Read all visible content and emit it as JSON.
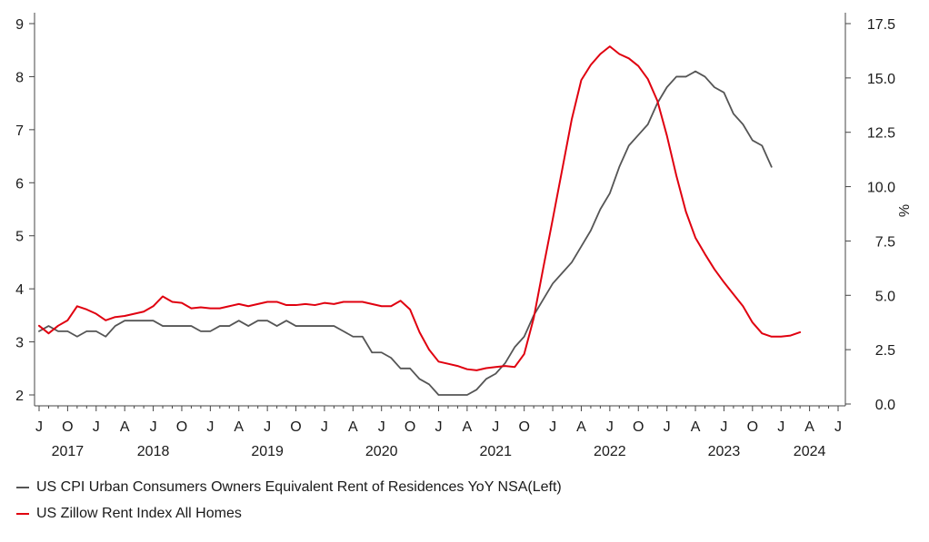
{
  "chart_data": {
    "type": "line",
    "title": "",
    "left_axis": {
      "ticks": [
        2,
        3,
        4,
        5,
        6,
        7,
        8,
        9
      ],
      "min": 1.8,
      "max": 9.2
    },
    "right_axis": {
      "label": "%",
      "ticks": [
        "0.0",
        "2.5",
        "5.0",
        "7.5",
        "10.0",
        "12.5",
        "15.0",
        "17.5"
      ],
      "min": 0.0,
      "max": 17.5
    },
    "x_axis": {
      "start": "2017-07",
      "end": "2024-07",
      "month_ticks": [
        "J",
        "O",
        "J",
        "A",
        "J",
        "O",
        "J",
        "A",
        "J",
        "O",
        "J",
        "A",
        "J",
        "O",
        "J",
        "A",
        "J",
        "O",
        "J",
        "A",
        "J",
        "O",
        "J",
        "A",
        "J",
        "O",
        "J",
        "A",
        "J"
      ],
      "year_labels": [
        {
          "label": "2017",
          "month": "2017-10"
        },
        {
          "label": "2018",
          "month": "2018-07"
        },
        {
          "label": "2019",
          "month": "2019-07"
        },
        {
          "label": "2020",
          "month": "2020-07"
        },
        {
          "label": "2021",
          "month": "2021-07"
        },
        {
          "label": "2022",
          "month": "2022-07"
        },
        {
          "label": "2023",
          "month": "2023-07"
        },
        {
          "label": "2024",
          "month": "2024-04"
        }
      ]
    },
    "grid": false,
    "series": [
      {
        "name": "US CPI Urban Consumers Owners Equivalent Rent of Residences YoY NSA(Left)",
        "axis": "left",
        "color": "#555555",
        "start": "2017-07",
        "values": [
          3.2,
          3.3,
          3.2,
          3.2,
          3.1,
          3.2,
          3.2,
          3.1,
          3.3,
          3.4,
          3.4,
          3.4,
          3.4,
          3.3,
          3.3,
          3.3,
          3.3,
          3.2,
          3.2,
          3.3,
          3.3,
          3.4,
          3.3,
          3.4,
          3.4,
          3.3,
          3.4,
          3.3,
          3.3,
          3.3,
          3.3,
          3.3,
          3.2,
          3.1,
          3.1,
          2.8,
          2.8,
          2.7,
          2.5,
          2.5,
          2.3,
          2.2,
          2.0,
          2.0,
          2.0,
          2.0,
          2.1,
          2.3,
          2.4,
          2.6,
          2.9,
          3.1,
          3.5,
          3.8,
          4.1,
          4.3,
          4.5,
          4.8,
          5.1,
          5.5,
          5.8,
          6.3,
          6.7,
          6.9,
          7.1,
          7.5,
          7.8,
          8.0,
          8.0,
          8.1,
          8.0,
          7.8,
          7.7,
          7.3,
          7.1,
          6.8,
          6.7,
          6.3
        ]
      },
      {
        "name": "US Zillow Rent Index All Homes",
        "axis": "right",
        "color": "#e0000f",
        "start": "2017-07",
        "values": [
          3.6,
          3.25,
          3.6,
          3.85,
          4.5,
          4.35,
          4.15,
          3.85,
          4.0,
          4.05,
          4.15,
          4.25,
          4.5,
          4.95,
          4.7,
          4.65,
          4.4,
          4.45,
          4.4,
          4.4,
          4.5,
          4.6,
          4.5,
          4.6,
          4.7,
          4.7,
          4.55,
          4.55,
          4.6,
          4.55,
          4.65,
          4.6,
          4.7,
          4.7,
          4.7,
          4.6,
          4.5,
          4.5,
          4.75,
          4.35,
          3.3,
          2.5,
          1.95,
          1.85,
          1.75,
          1.6,
          1.55,
          1.65,
          1.7,
          1.75,
          1.7,
          2.3,
          3.95,
          6.25,
          8.5,
          10.8,
          13.1,
          14.9,
          15.6,
          16.1,
          16.45,
          16.1,
          15.9,
          15.55,
          14.95,
          13.95,
          12.35,
          10.5,
          8.85,
          7.65,
          6.9,
          6.2,
          5.6,
          5.05,
          4.5,
          3.75,
          3.25,
          3.1,
          3.1,
          3.15,
          3.3
        ]
      }
    ]
  }
}
